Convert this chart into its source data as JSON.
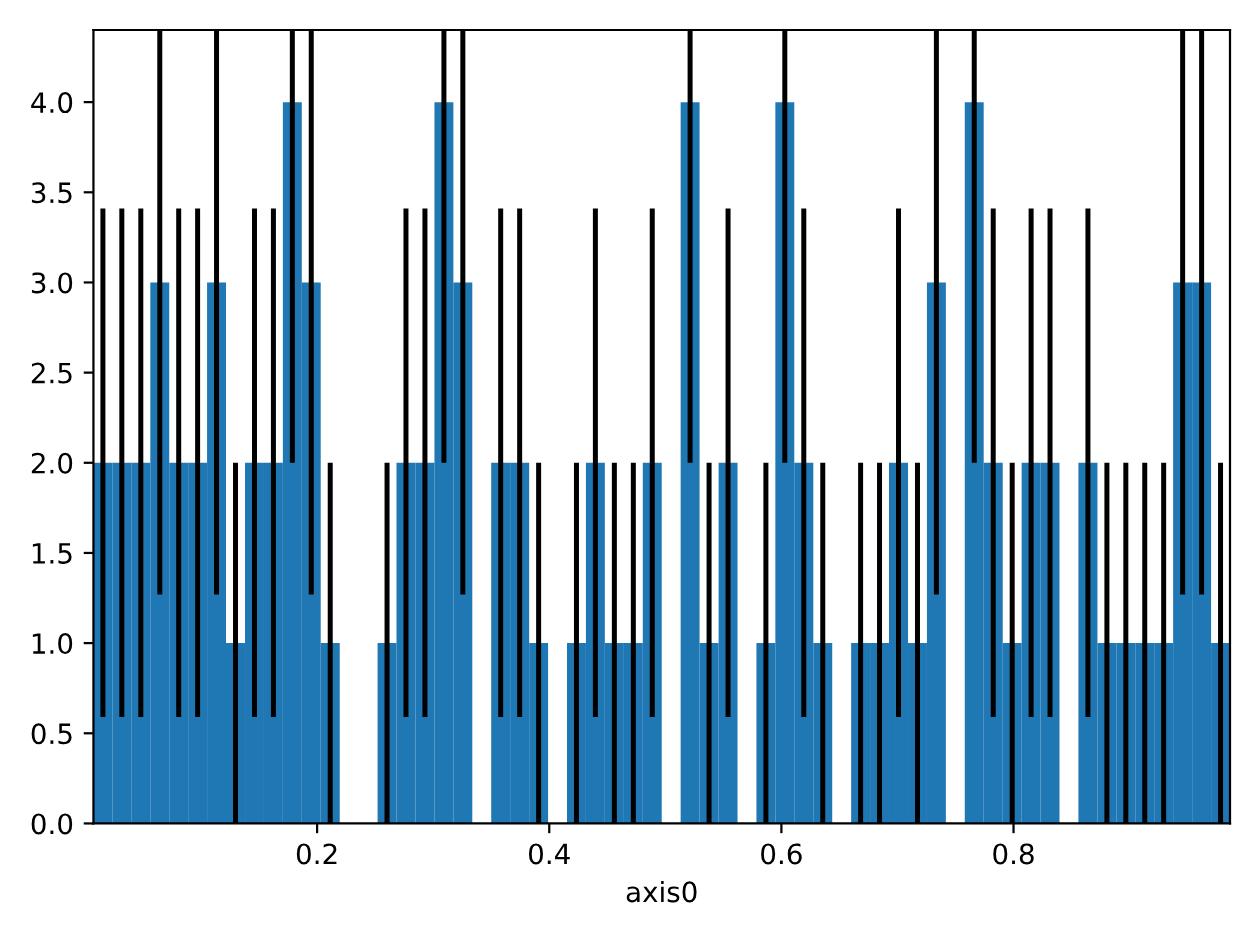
{
  "chart_data": {
    "type": "histogram",
    "xlabel": "axis0",
    "color": "#1f77b4",
    "bins": [
      0.0073,
      0.0236,
      0.0399,
      0.0563,
      0.0726,
      0.0889,
      0.1052,
      0.1215,
      0.1379,
      0.1542,
      0.1705,
      0.1868,
      0.2031,
      0.2195,
      0.2358,
      0.2521,
      0.2684,
      0.2847,
      0.3011,
      0.3174,
      0.3337,
      0.35,
      0.3663,
      0.3827,
      0.399,
      0.4153,
      0.4316,
      0.4479,
      0.4643,
      0.4806,
      0.4969,
      0.5132,
      0.5295,
      0.5459,
      0.5622,
      0.5785,
      0.5948,
      0.6111,
      0.6275,
      0.6438,
      0.6601,
      0.6764,
      0.6927,
      0.7091,
      0.7254,
      0.7417,
      0.758,
      0.7743,
      0.7907,
      0.807,
      0.8233,
      0.8396,
      0.8559,
      0.8723,
      0.8886,
      0.9049,
      0.9212,
      0.9375,
      0.9539,
      0.9702,
      0.9865
    ],
    "values": [
      2,
      2,
      2,
      3,
      2,
      2,
      3,
      1,
      2,
      2,
      4,
      3,
      1,
      0,
      0,
      1,
      2,
      2,
      4,
      3,
      0,
      2,
      2,
      1,
      0,
      1,
      2,
      1,
      1,
      2,
      0,
      4,
      1,
      2,
      0,
      1,
      4,
      2,
      1,
      0,
      1,
      1,
      2,
      1,
      3,
      0,
      4,
      2,
      1,
      2,
      2,
      0,
      2,
      1,
      1,
      1,
      1,
      3,
      3,
      1
    ],
    "errors": [
      1.41,
      1.41,
      1.41,
      [
        1.27,
        4.4
      ],
      1.41,
      1.41,
      [
        1.27,
        4.4
      ],
      1,
      1.41,
      1.41,
      [
        2,
        4.4
      ],
      [
        1.27,
        4.4
      ],
      1,
      null,
      null,
      1,
      1.41,
      1.41,
      [
        2,
        4.4
      ],
      [
        1.27,
        4.4
      ],
      null,
      1.41,
      1.41,
      1,
      null,
      1,
      1.41,
      1,
      1,
      1.41,
      null,
      [
        2,
        4.4
      ],
      1,
      1.41,
      null,
      1,
      [
        2,
        4.4
      ],
      1.41,
      1,
      null,
      1,
      1,
      1.41,
      1,
      [
        1.27,
        4.4
      ],
      null,
      [
        2,
        4.4
      ],
      1.41,
      1,
      1.41,
      1.41,
      null,
      1.41,
      1,
      1,
      1,
      1,
      [
        1.27,
        4.4
      ],
      [
        1.27,
        4.4
      ],
      1
    ],
    "xlim": [
      0.0073,
      0.9865
    ],
    "ylim": [
      0,
      4.4
    ],
    "xticks": [
      0.2,
      0.4,
      0.6,
      0.8
    ],
    "yticks": [
      {
        "value": 0,
        "label": "0.0"
      },
      {
        "value": 0.5,
        "label": "0.5"
      },
      {
        "value": 1,
        "label": "1.0"
      },
      {
        "value": 1.5,
        "label": "1.5"
      },
      {
        "value": 2,
        "label": "2.0"
      },
      {
        "value": 2.5,
        "label": "2.5"
      },
      {
        "value": 3,
        "label": "3.0"
      },
      {
        "value": 3.5,
        "label": "3.5"
      },
      {
        "value": 4,
        "label": "4.0"
      }
    ],
    "grid": false
  }
}
